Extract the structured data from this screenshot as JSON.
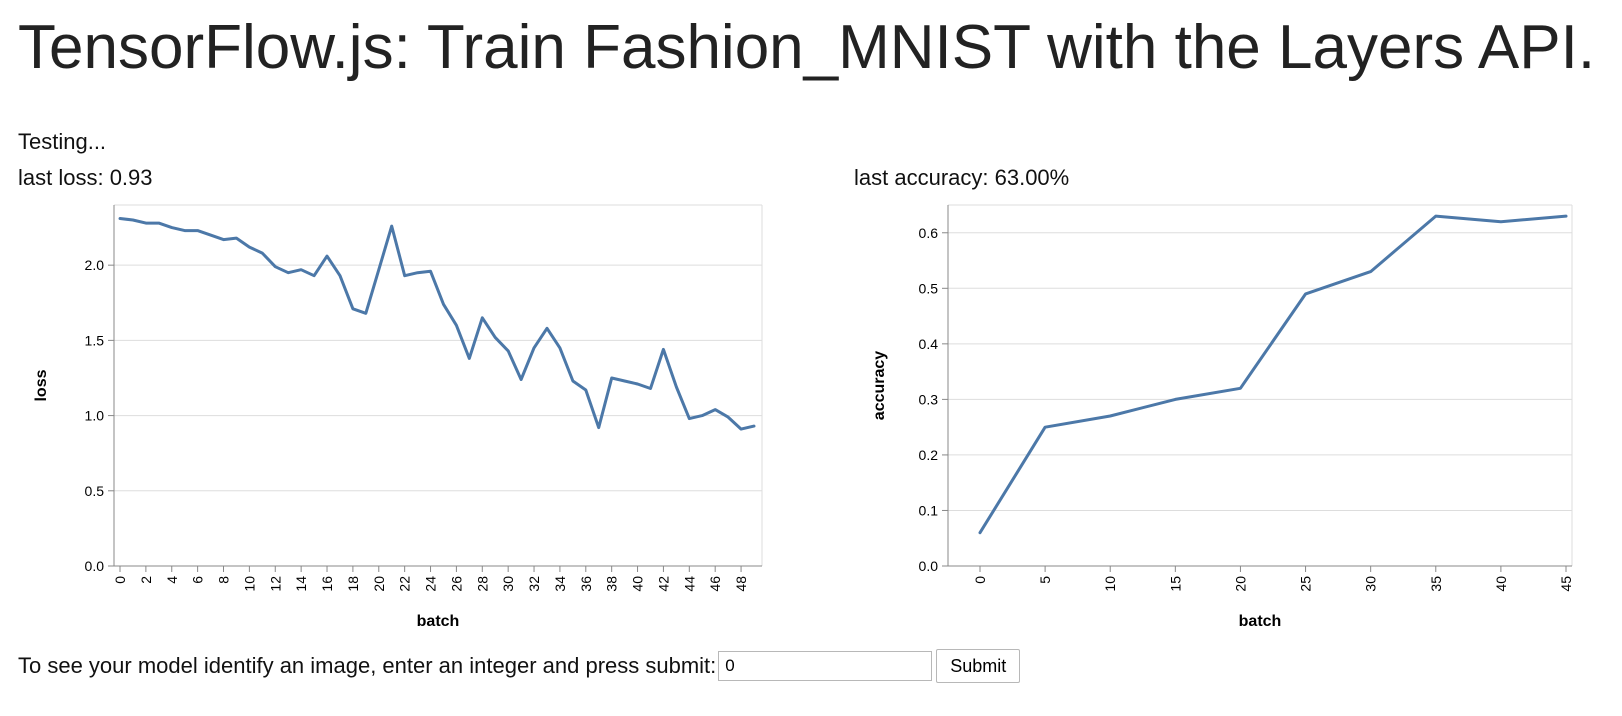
{
  "header": {
    "title": "TensorFlow.js: Train Fashion_MNIST with the Layers API."
  },
  "status": {
    "text": "Testing..."
  },
  "loss_panel": {
    "label": "last loss: 0.93"
  },
  "accuracy_panel": {
    "label": "last accuracy: 63.00%"
  },
  "form": {
    "prompt": "To see your model identify an image, enter an integer and press submit:",
    "input_value": "0",
    "submit_label": "Submit"
  },
  "colors": {
    "line": "#4c78a8",
    "grid": "#dddddd",
    "axis": "#888888"
  },
  "chart_data": [
    {
      "type": "line",
      "title": "",
      "xlabel": "batch",
      "ylabel": "loss",
      "x": [
        0,
        1,
        2,
        3,
        4,
        5,
        6,
        7,
        8,
        9,
        10,
        11,
        12,
        13,
        14,
        15,
        16,
        17,
        18,
        19,
        20,
        21,
        22,
        23,
        24,
        25,
        26,
        27,
        28,
        29,
        30,
        31,
        32,
        33,
        34,
        35,
        36,
        37,
        38,
        39,
        40,
        41,
        42,
        43,
        44,
        45,
        46,
        47,
        48,
        49
      ],
      "y": [
        2.31,
        2.3,
        2.28,
        2.28,
        2.25,
        2.23,
        2.23,
        2.2,
        2.17,
        2.18,
        2.12,
        2.08,
        1.99,
        1.95,
        1.97,
        1.93,
        2.06,
        1.93,
        1.71,
        1.68,
        1.97,
        2.26,
        1.93,
        1.95,
        1.96,
        1.74,
        1.6,
        1.38,
        1.65,
        1.52,
        1.43,
        1.24,
        1.45,
        1.58,
        1.45,
        1.23,
        1.17,
        0.92,
        1.25,
        1.23,
        1.21,
        1.18,
        1.44,
        1.19,
        0.98,
        1.0,
        1.04,
        0.99,
        0.91,
        0.93
      ],
      "xlim": [
        0,
        49
      ],
      "ylim": [
        0,
        2.4
      ],
      "yticks": [
        0.0,
        0.5,
        1.0,
        1.5,
        2.0
      ],
      "ytick_labels": [
        "0.0",
        "0.5",
        "1.0",
        "1.5",
        "2.0"
      ],
      "xticks": [
        0,
        2,
        4,
        6,
        8,
        10,
        12,
        14,
        16,
        18,
        20,
        22,
        24,
        26,
        28,
        30,
        32,
        34,
        36,
        38,
        40,
        42,
        44,
        46,
        48
      ],
      "xtick_labels": [
        "0",
        "2",
        "4",
        "6",
        "8",
        "10",
        "12",
        "14",
        "16",
        "18",
        "20",
        "22",
        "24",
        "26",
        "28",
        "30",
        "32",
        "34",
        "36",
        "38",
        "40",
        "42",
        "44",
        "46",
        "48"
      ],
      "grid": true,
      "legend": "none"
    },
    {
      "type": "line",
      "title": "",
      "xlabel": "batch",
      "ylabel": "accuracy",
      "x": [
        0,
        5,
        10,
        15,
        20,
        25,
        30,
        35,
        40,
        45
      ],
      "y": [
        0.06,
        0.25,
        0.27,
        0.3,
        0.32,
        0.49,
        0.53,
        0.63,
        0.62,
        0.63
      ],
      "xlim": [
        0,
        45
      ],
      "ylim": [
        0,
        0.65
      ],
      "yticks": [
        0.0,
        0.1,
        0.2,
        0.3,
        0.4,
        0.5,
        0.6
      ],
      "ytick_labels": [
        "0.0",
        "0.1",
        "0.2",
        "0.3",
        "0.4",
        "0.5",
        "0.6"
      ],
      "xticks": [
        0,
        5,
        10,
        15,
        20,
        25,
        30,
        35,
        40,
        45
      ],
      "xtick_labels": [
        "0",
        "5",
        "10",
        "15",
        "20",
        "25",
        "30",
        "35",
        "40",
        "45"
      ],
      "grid": true,
      "legend": "none"
    }
  ]
}
